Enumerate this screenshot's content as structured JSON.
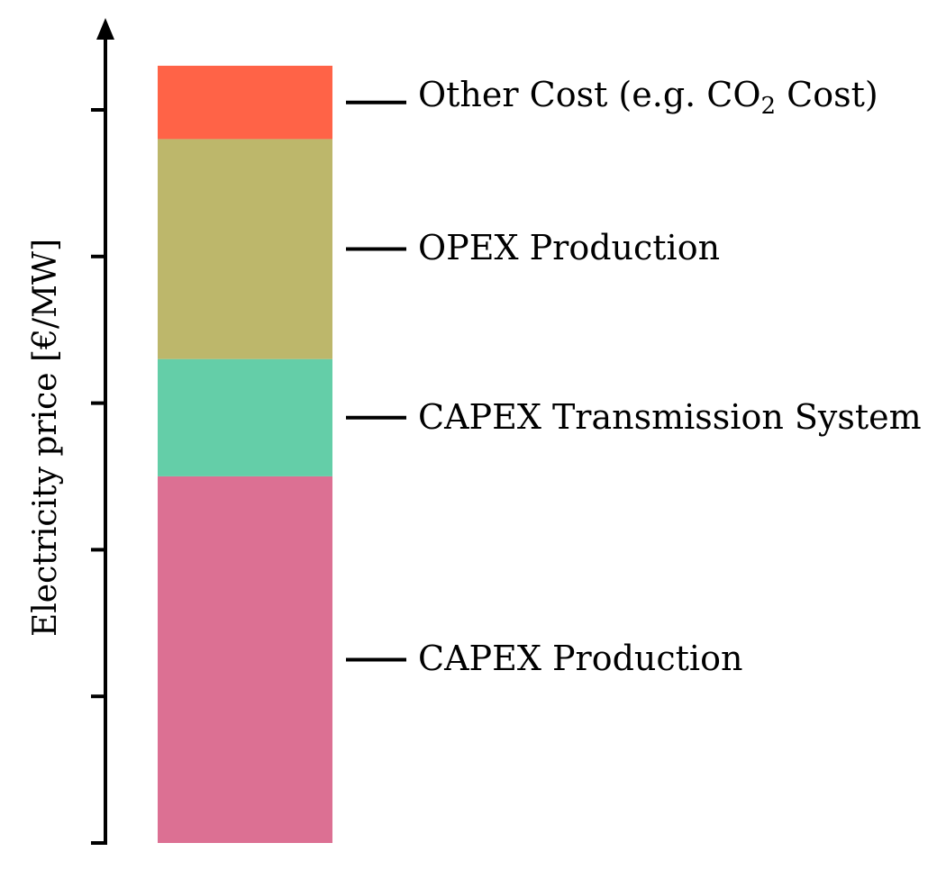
{
  "chart_data": {
    "type": "bar",
    "stacked": true,
    "title": "",
    "xlabel": "",
    "ylabel": "Electricity price [€/MW]",
    "ylim": [
      0,
      5
    ],
    "grid": false,
    "legend": "inline-right",
    "segments": [
      {
        "name": "CAPEX Production",
        "bottom": 0.0,
        "value": 2.5,
        "color": "#DC7093"
      },
      {
        "name": "CAPEX Transmission System",
        "bottom": 2.5,
        "value": 0.8,
        "color": "#64CEA8"
      },
      {
        "name": "OPEX Production",
        "bottom": 3.3,
        "value": 1.5,
        "color": "#BDB76B"
      },
      {
        "name": "Other Cost (e.g. CO",
        "subscript": "2",
        "suffix": " Cost)",
        "bottom": 4.8,
        "value": 0.5,
        "color": "#FF6347"
      }
    ],
    "labels": {
      "capex_production": "CAPEX Production",
      "capex_transmission": "CAPEX Transmission System",
      "opex_production": "OPEX Production",
      "other_cost_main": "Other Cost (e.g. CO",
      "other_cost_sub": "2",
      "other_cost_suffix": " Cost)"
    }
  }
}
